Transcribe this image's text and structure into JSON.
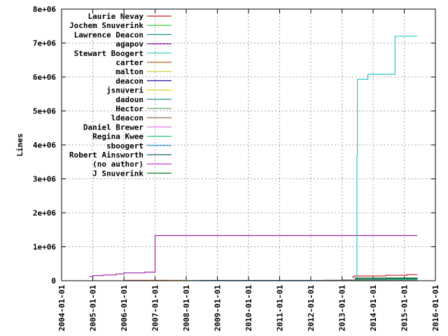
{
  "chart_data": {
    "type": "line",
    "title": "",
    "xlabel": "",
    "ylabel": "Lines",
    "x_range": [
      "2004-01-01",
      "2016-01-01"
    ],
    "y_range": [
      0,
      8000000
    ],
    "grid": true,
    "legend_placement": "top-left",
    "x_ticks": [
      "2004-01-01",
      "2005-01-01",
      "2006-01-01",
      "2007-01-01",
      "2008-01-01",
      "2009-01-01",
      "2010-01-01",
      "2011-01-01",
      "2012-01-01",
      "2013-01-01",
      "2014-01-01",
      "2015-01-01",
      "2016-01-01"
    ],
    "y_ticks": [
      {
        "value": 0,
        "label": "0"
      },
      {
        "value": 1000000,
        "label": "1e+06"
      },
      {
        "value": 2000000,
        "label": "2e+06"
      },
      {
        "value": 3000000,
        "label": "3e+06"
      },
      {
        "value": 4000000,
        "label": "4e+06"
      },
      {
        "value": 5000000,
        "label": "5e+06"
      },
      {
        "value": 6000000,
        "label": "6e+06"
      },
      {
        "value": 7000000,
        "label": "7e+06"
      },
      {
        "value": 8000000,
        "label": "8e+06"
      }
    ],
    "series": [
      {
        "name": "Laurie Nevay",
        "color": "#c81e1e",
        "points": [
          [
            "2013-05-01",
            100000
          ],
          [
            "2013-05-20",
            140000
          ],
          [
            "2014-06-01",
            160000
          ],
          [
            "2015-02-01",
            180000
          ],
          [
            "2015-06-01",
            190000
          ]
        ]
      },
      {
        "name": "Jochem Snuverink",
        "color": "#1ec81e",
        "points": [
          [
            "2013-01-01",
            10000
          ],
          [
            "2015-06-01",
            20000
          ]
        ]
      },
      {
        "name": "Lawrence Deacon",
        "color": "#1e8ca0",
        "points": [
          [
            "2013-01-01",
            20000
          ],
          [
            "2014-01-01",
            30000
          ],
          [
            "2015-06-01",
            40000
          ]
        ]
      },
      {
        "name": "agapov",
        "color": "#a01ea0",
        "points": [
          [
            "2004-11-20",
            120000
          ],
          [
            "2005-01-01",
            150000
          ],
          [
            "2005-05-01",
            170000
          ],
          [
            "2005-10-01",
            200000
          ],
          [
            "2006-01-01",
            230000
          ],
          [
            "2006-09-01",
            250000
          ],
          [
            "2006-12-31",
            260000
          ],
          [
            "2007-01-01",
            1330000
          ],
          [
            "2015-06-01",
            1330000
          ]
        ]
      },
      {
        "name": "Stewart Boogert",
        "color": "#28c8c8",
        "points": [
          [
            "2013-06-15",
            0
          ],
          [
            "2013-06-25",
            3700000
          ],
          [
            "2013-07-01",
            5930000
          ],
          [
            "2013-11-01",
            6080000
          ],
          [
            "2014-09-15",
            7200000
          ],
          [
            "2015-06-01",
            7200000
          ]
        ]
      },
      {
        "name": "carter",
        "color": "#c85a1e",
        "points": [
          [
            "2006-01-01",
            10000
          ],
          [
            "2008-01-01",
            10000
          ]
        ]
      },
      {
        "name": "malton",
        "color": "#c8c81e",
        "points": [
          [
            "2007-06-01",
            5000
          ],
          [
            "2015-06-01",
            5000
          ]
        ]
      },
      {
        "name": "deacon",
        "color": "#1e1e96",
        "points": [
          [
            "2008-06-01",
            8000
          ],
          [
            "2013-01-01",
            8000
          ]
        ]
      },
      {
        "name": "jsnuveri",
        "color": "#e6c81e",
        "points": [
          [
            "2012-01-01",
            5000
          ],
          [
            "2013-01-01",
            5000
          ]
        ]
      },
      {
        "name": "dadoun",
        "color": "#1e7878",
        "points": [
          [
            "2011-01-01",
            3000
          ],
          [
            "2013-01-01",
            3000
          ]
        ]
      },
      {
        "name": "Hector",
        "color": "#5ab45a",
        "points": [
          [
            "2013-06-01",
            20000
          ],
          [
            "2015-06-01",
            20000
          ]
        ]
      },
      {
        "name": "ldeacon",
        "color": "#8c5a28",
        "points": [
          [
            "2012-06-01",
            15000
          ],
          [
            "2013-06-01",
            30000
          ]
        ]
      },
      {
        "name": "Daniel Brewer",
        "color": "#e678e6",
        "points": [
          [
            "2014-01-01",
            5000
          ],
          [
            "2015-06-01",
            5000
          ]
        ]
      },
      {
        "name": "Regina Kwee",
        "color": "#28c878",
        "points": [
          [
            "2014-01-01",
            40000
          ],
          [
            "2015-06-01",
            60000
          ]
        ]
      },
      {
        "name": "sboogert",
        "color": "#1e96c8",
        "points": [
          [
            "2008-01-01",
            5000
          ],
          [
            "2013-06-01",
            5000
          ]
        ]
      },
      {
        "name": "Robert Ainsworth",
        "color": "#1e5a78",
        "points": [
          [
            "2013-06-01",
            50000
          ],
          [
            "2014-06-01",
            60000
          ],
          [
            "2015-06-01",
            70000
          ]
        ]
      },
      {
        "name": "(no author)",
        "color": "#c81ec8",
        "points": [
          [
            "2006-01-01",
            2000
          ],
          [
            "2006-06-01",
            2000
          ]
        ]
      },
      {
        "name": "J Snuverink",
        "color": "#1e7828",
        "points": [
          [
            "2013-06-01",
            80000
          ],
          [
            "2015-06-01",
            90000
          ]
        ]
      }
    ]
  }
}
